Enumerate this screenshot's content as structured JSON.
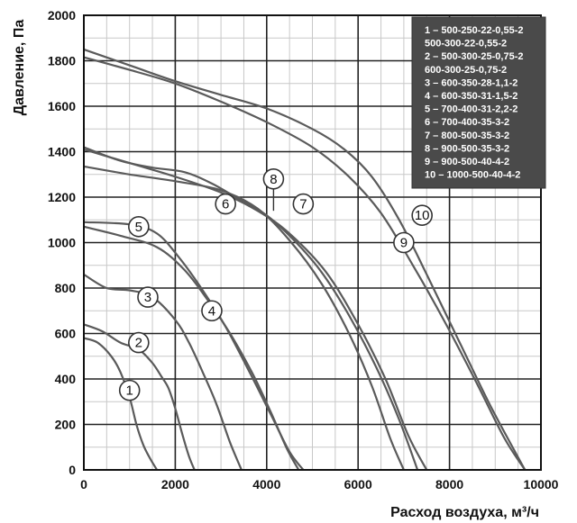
{
  "chart_data": {
    "type": "line",
    "xlabel": "Расход воздуха, м³/ч",
    "ylabel": "Давление, Па",
    "xlim": [
      0,
      10000
    ],
    "ylim": [
      0,
      2000
    ],
    "x_ticks": [
      "0",
      "2000",
      "4000",
      "6000",
      "8000",
      "10000"
    ],
    "y_ticks": [
      "0",
      "200",
      "400",
      "600",
      "800",
      "1000",
      "1200",
      "1400",
      "1600",
      "1800",
      "2000"
    ],
    "grid": true,
    "legend_position": "top-right",
    "legend": [
      "1 – 500-250-22-0,55-2",
      "500-300-22-0,55-2",
      "2 – 500-300-25-0,75-2",
      "600-300-25-0,75-2",
      "3 – 600-350-28-1,1-2",
      "4 – 600-350-31-1,5-2",
      "5 – 700-400-31-2,2-2",
      "6 – 700-400-35-3-2",
      "7 – 800-500-35-3-2",
      "8 – 900-500-35-3-2",
      "9 – 900-500-40-4-2",
      "10 – 1000-500-40-4-2"
    ],
    "series": [
      {
        "name": "1",
        "label_at": [
          1000,
          350
        ],
        "x": [
          0,
          300,
          600,
          800,
          1000,
          1150,
          1300,
          1450,
          1600
        ],
        "y": [
          580,
          560,
          500,
          430,
          320,
          200,
          110,
          50,
          0
        ]
      },
      {
        "name": "2",
        "label_at": [
          1200,
          560
        ],
        "x": [
          0,
          400,
          800,
          1200,
          1500,
          1700,
          1850,
          2000,
          2150,
          2300,
          2420
        ],
        "y": [
          640,
          610,
          560,
          530,
          470,
          410,
          360,
          270,
          160,
          60,
          0
        ]
      },
      {
        "name": "3",
        "label_at": [
          1400,
          760
        ],
        "x": [
          0,
          500,
          1000,
          1500,
          2000,
          2300,
          2600,
          2900,
          3200,
          3450
        ],
        "y": [
          860,
          800,
          790,
          760,
          660,
          560,
          430,
          290,
          120,
          0
        ]
      },
      {
        "name": "4",
        "label_at": [
          2800,
          700
        ],
        "x": [
          0,
          800,
          1600,
          2200,
          2700,
          3200,
          3700,
          4100,
          4450,
          4700
        ],
        "y": [
          1070,
          1030,
          980,
          880,
          750,
          600,
          420,
          250,
          90,
          0
        ]
      },
      {
        "name": "5",
        "label_at": [
          1200,
          1070
        ],
        "x": [
          0,
          1000,
          1600,
          2100,
          2600,
          3100,
          3600,
          4100,
          4500,
          4800
        ],
        "y": [
          1090,
          1080,
          1040,
          930,
          790,
          630,
          440,
          240,
          80,
          0
        ]
      },
      {
        "name": "6",
        "label_at": [
          3100,
          1170
        ],
        "x": [
          0,
          1000,
          2000,
          3000,
          3800,
          4500,
          5200,
          5800,
          6300,
          6700,
          7000
        ],
        "y": [
          1335,
          1300,
          1270,
          1230,
          1150,
          1010,
          820,
          600,
          370,
          140,
          0
        ]
      },
      {
        "name": "7",
        "label_at": [
          4800,
          1170
        ],
        "x": [
          0,
          1000,
          2000,
          3000,
          3800,
          4500,
          5300,
          6000,
          6600,
          7100,
          7500
        ],
        "y": [
          1410,
          1350,
          1290,
          1220,
          1140,
          1040,
          870,
          640,
          400,
          150,
          0
        ]
      },
      {
        "name": "8",
        "label_at": [
          4150,
          1280
        ],
        "x": [
          0,
          800,
          1500,
          2200,
          2800,
          3400,
          4000,
          4600,
          5200,
          5800,
          6400,
          6900,
          7300
        ],
        "y": [
          1420,
          1360,
          1330,
          1310,
          1260,
          1190,
          1120,
          1010,
          870,
          680,
          450,
          220,
          0
        ]
      },
      {
        "name": "9",
        "label_at": [
          7000,
          1000
        ],
        "x": [
          0,
          1000,
          2000,
          3000,
          4000,
          5000,
          5800,
          6500,
          7200,
          7900,
          8600,
          9200,
          9650
        ],
        "y": [
          1815,
          1760,
          1700,
          1620,
          1530,
          1420,
          1290,
          1130,
          900,
          650,
          380,
          140,
          0
        ]
      },
      {
        "name": "10",
        "label_at": [
          7400,
          1120
        ],
        "x": [
          0,
          1000,
          2000,
          3000,
          4000,
          5000,
          5700,
          6300,
          6900,
          7500,
          8200,
          8900,
          9650
        ],
        "y": [
          1850,
          1780,
          1710,
          1650,
          1590,
          1500,
          1410,
          1290,
          1100,
          860,
          570,
          280,
          0
        ]
      }
    ]
  }
}
